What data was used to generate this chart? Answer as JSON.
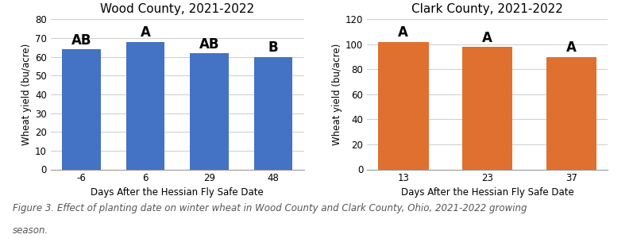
{
  "wood_title": "Wood County, 2021-2022",
  "wood_x_labels": [
    "-6",
    "6",
    "29",
    "48"
  ],
  "wood_values": [
    64,
    68,
    62,
    60
  ],
  "wood_letters": [
    "AB",
    "A",
    "AB",
    "B"
  ],
  "wood_color": "#4472C4",
  "wood_ylim": [
    0,
    80
  ],
  "wood_yticks": [
    0,
    10,
    20,
    30,
    40,
    50,
    60,
    70,
    80
  ],
  "clark_title": "Clark County, 2021-2022",
  "clark_x_labels": [
    "13",
    "23",
    "37"
  ],
  "clark_values": [
    102,
    98,
    90
  ],
  "clark_letters": [
    "A",
    "A",
    "A"
  ],
  "clark_color": "#E07030",
  "clark_ylim": [
    0,
    120
  ],
  "clark_yticks": [
    0,
    20,
    40,
    60,
    80,
    100,
    120
  ],
  "xlabel": "Days After the Hessian Fly Safe Date",
  "ylabel": "Wheat yield (bu/acre)",
  "caption": "Figure 3. Effect of planting date on winter wheat in Wood County and Clark County, Ohio, 2021-2022 growing\nseason.",
  "bg_color": "#FFFFFF",
  "grid_color": "#D0D0D0",
  "letter_fontsize": 12,
  "title_fontsize": 11,
  "axis_fontsize": 8.5,
  "tick_fontsize": 8.5,
  "caption_fontsize": 8.5
}
